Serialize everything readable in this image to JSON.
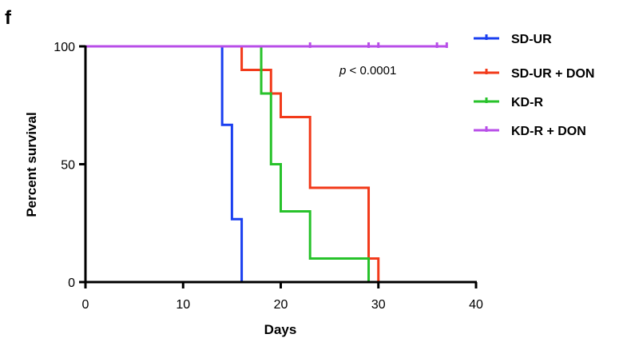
{
  "panel_label": "f",
  "chart_data": {
    "type": "line",
    "subtype": "kaplan-meier survival curve",
    "xlabel": "Days",
    "ylabel": "Percent survival",
    "xlim": [
      0,
      40
    ],
    "ylim": [
      0,
      100
    ],
    "xticks": [
      0,
      10,
      20,
      30,
      40
    ],
    "yticks": [
      0,
      50,
      100
    ],
    "grid": false,
    "legend_position": "right",
    "annotation": {
      "italic": "p",
      "rest": " < 0.0001"
    },
    "series": [
      {
        "name": "SD-UR",
        "color": "#1a3ff0",
        "steps": [
          [
            0,
            100
          ],
          [
            14,
            66.7
          ],
          [
            15,
            26.7
          ],
          [
            16,
            0
          ]
        ],
        "censored": []
      },
      {
        "name": "SD-UR + DON",
        "color": "#f23a1a",
        "steps": [
          [
            0,
            100
          ],
          [
            16,
            90
          ],
          [
            19,
            80
          ],
          [
            20,
            70
          ],
          [
            23,
            40
          ],
          [
            29,
            10
          ],
          [
            30,
            0
          ]
        ],
        "censored": []
      },
      {
        "name": "KD-R",
        "color": "#27c22a",
        "steps": [
          [
            0,
            100
          ],
          [
            18,
            80
          ],
          [
            19,
            50
          ],
          [
            20,
            30
          ],
          [
            23,
            10
          ],
          [
            29,
            0
          ]
        ],
        "censored": [
          [
            18,
            90
          ]
        ]
      },
      {
        "name": "KD-R + DON",
        "color": "#b84ee8",
        "steps": [
          [
            0,
            100
          ]
        ],
        "end": 37,
        "censored": [
          [
            23,
            100
          ],
          [
            29,
            100
          ],
          [
            30,
            100
          ],
          [
            36,
            100
          ],
          [
            37,
            100
          ]
        ]
      }
    ]
  }
}
